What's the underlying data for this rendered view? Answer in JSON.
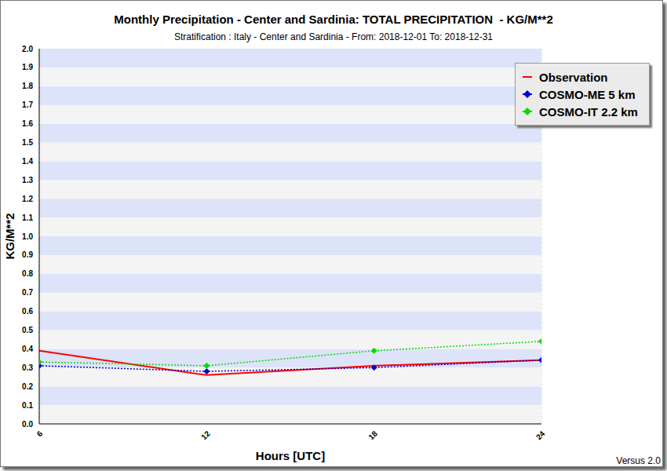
{
  "chart_data": {
    "type": "line",
    "title": "Monthly Precipitation - Center and Sardinia: TOTAL PRECIPITATION  - KG/M**2",
    "subtitle": "Stratification : Italy - Center and Sardinia - From: 2018-12-01 To: 2018-12-31",
    "x_label": "Hours [UTC]",
    "y_label": "KG/M**2",
    "annotations": [
      "Versus 2.0"
    ],
    "x": [
      6,
      12,
      18,
      24
    ],
    "xlim": [
      6,
      24
    ],
    "xticks": [
      6,
      12,
      18,
      24
    ],
    "ylim": [
      0,
      2
    ],
    "yticks": [
      {
        "value": 0,
        "label": "0.0"
      },
      0.1,
      0.2,
      0.3,
      0.4,
      0.5,
      0.6,
      0.7,
      0.8,
      0.9,
      {
        "value": 1,
        "label": "1.0"
      },
      1.1,
      1.2,
      1.3,
      1.4,
      1.5,
      1.6,
      1.7,
      1.8,
      1.9,
      {
        "value": 2,
        "label": "2.0"
      }
    ],
    "grid": true,
    "legend": "top-right",
    "series": [
      {
        "name": "Observation",
        "color": "#ff0000",
        "values": [
          0.39,
          0.26,
          0.31,
          0.34
        ],
        "marker": "none",
        "line_style": "solid"
      },
      {
        "name": "COSMO-ME 5 km",
        "color": "#0000cc",
        "values": [
          0.31,
          0.28,
          0.3,
          0.34
        ],
        "marker": "diamond",
        "line_style": "dotted"
      },
      {
        "name": "COSMO-IT 2.2 km",
        "color": "#00dd00",
        "values": [
          0.33,
          0.31,
          0.39,
          0.44
        ],
        "marker": "diamond",
        "line_style": "dotted"
      }
    ]
  }
}
